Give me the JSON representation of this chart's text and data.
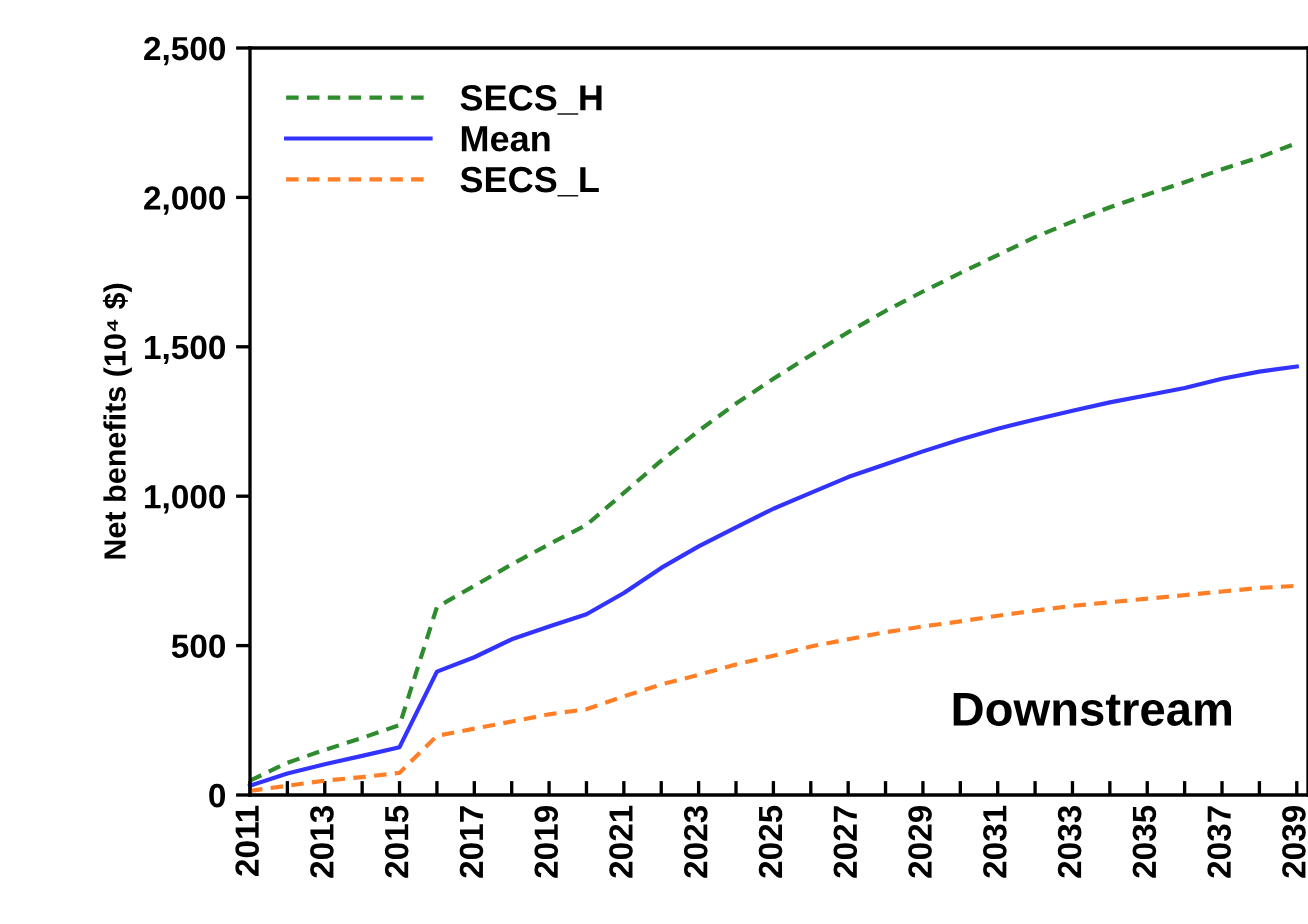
{
  "chart_data": {
    "type": "line",
    "ylabel": "Net benefits (10⁴ $)",
    "x": [
      2011,
      2012,
      2013,
      2014,
      2015,
      2016,
      2017,
      2018,
      2019,
      2020,
      2021,
      2022,
      2023,
      2024,
      2025,
      2026,
      2027,
      2028,
      2029,
      2030,
      2031,
      2032,
      2033,
      2034,
      2035,
      2036,
      2037,
      2038,
      2039
    ],
    "series": [
      {
        "name": "SECS_H",
        "color": "#2e8b2e",
        "line_style": "dashed",
        "values": [
          48,
          108,
          151,
          191,
          234,
          629,
          700,
          772,
          839,
          904,
          1011,
          1119,
          1219,
          1310,
          1393,
          1472,
          1549,
          1620,
          1685,
          1747,
          1807,
          1867,
          1919,
          1967,
          2010,
          2051,
          2094,
          2134,
          2182
        ]
      },
      {
        "name": "Mean",
        "color": "#3333ff",
        "line_style": "solid",
        "values": [
          31,
          72,
          103,
          131,
          160,
          413,
          461,
          521,
          564,
          605,
          676,
          760,
          832,
          896,
          958,
          1011,
          1064,
          1107,
          1150,
          1190,
          1226,
          1257,
          1286,
          1314,
          1338,
          1362,
          1393,
          1417,
          1434
        ]
      },
      {
        "name": "SECS_L",
        "color": "#ff7f27",
        "line_style": "dashed",
        "values": [
          14,
          31,
          48,
          60,
          74,
          198,
          222,
          246,
          270,
          287,
          330,
          370,
          402,
          437,
          466,
          497,
          521,
          545,
          564,
          581,
          600,
          617,
          633,
          645,
          657,
          669,
          681,
          693,
          700
        ]
      }
    ],
    "xlim": [
      2011,
      2039.3
    ],
    "xticks": [
      2011,
      {
        "value": 2012,
        "label": null
      },
      2013,
      {
        "value": 2014,
        "label": null
      },
      2015,
      {
        "value": 2016,
        "label": null
      },
      2017,
      {
        "value": 2018,
        "label": null
      },
      2019,
      {
        "value": 2020,
        "label": null
      },
      2021,
      {
        "value": 2022,
        "label": null
      },
      2023,
      {
        "value": 2024,
        "label": null
      },
      2025,
      {
        "value": 2026,
        "label": null
      },
      2027,
      {
        "value": 2028,
        "label": null
      },
      2029,
      {
        "value": 2030,
        "label": null
      },
      2031,
      {
        "value": 2032,
        "label": null
      },
      2033,
      {
        "value": 2034,
        "label": null
      },
      2035,
      {
        "value": 2036,
        "label": null
      },
      2037,
      {
        "value": 2038,
        "label": null
      },
      2039
    ],
    "ylim": [
      0,
      2500
    ],
    "yticks": [
      0,
      {
        "value": 500,
        "label": "500"
      },
      {
        "value": 1000,
        "label": "1,000"
      },
      {
        "value": 1500,
        "label": "1,500"
      },
      {
        "value": 2000,
        "label": "2,000"
      },
      {
        "value": 2500,
        "label": "2,500"
      }
    ],
    "annotations": [
      "Downstream"
    ],
    "legend": "top left",
    "grid": false,
    "marker": "none"
  }
}
